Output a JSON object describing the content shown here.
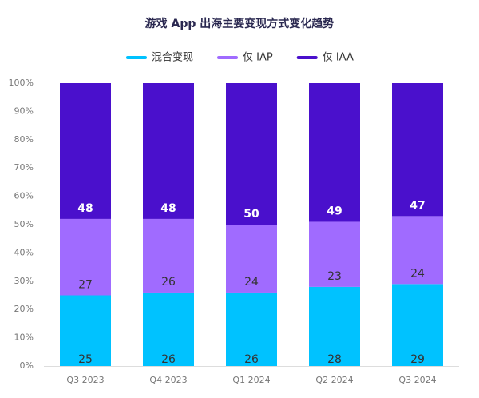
{
  "chart_data": {
    "type": "stacked_bar",
    "title": "游戏 App 出海主要变现方式变化趋势",
    "categories": [
      "Q3 2023",
      "Q4 2023",
      "Q1 2024",
      "Q2 2024",
      "Q3 2024"
    ],
    "series": [
      {
        "name": "混合变现",
        "color": "#00c2ff",
        "values": [
          25,
          26,
          26,
          28,
          29
        ]
      },
      {
        "name": "仅 IAP",
        "color": "#a06bff",
        "values": [
          27,
          26,
          24,
          23,
          24
        ]
      },
      {
        "name": "仅 IAA",
        "color": "#4a10cc",
        "values": [
          48,
          48,
          50,
          49,
          47
        ]
      }
    ],
    "ylim": [
      0,
      100
    ],
    "yticks": [
      {
        "value": 0,
        "label": "0%"
      },
      {
        "value": 10,
        "label": "10%"
      },
      {
        "value": 20,
        "label": "20%"
      },
      {
        "value": 30,
        "label": "30%"
      },
      {
        "value": 40,
        "label": "40%"
      },
      {
        "value": 50,
        "label": "50%"
      },
      {
        "value": 60,
        "label": "60%"
      },
      {
        "value": 70,
        "label": "70%"
      },
      {
        "value": 80,
        "label": "80%"
      },
      {
        "value": 90,
        "label": "90%"
      },
      {
        "value": 100,
        "label": "100%"
      }
    ]
  }
}
